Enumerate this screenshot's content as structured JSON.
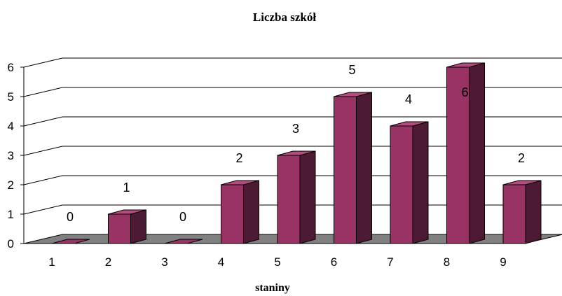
{
  "chart_data": {
    "type": "bar",
    "title": "Liczba szkół",
    "xlabel": "staniny",
    "ylabel": "",
    "categories": [
      "1",
      "2",
      "3",
      "4",
      "5",
      "6",
      "7",
      "8",
      "9"
    ],
    "values": [
      0,
      1,
      0,
      2,
      3,
      5,
      4,
      6,
      2
    ],
    "data_labels": [
      "0",
      "1",
      "0",
      "2",
      "3",
      "5",
      "4",
      "6",
      "2"
    ],
    "ylim": [
      0,
      6
    ],
    "yticks": [
      "0",
      "1",
      "2",
      "3",
      "4",
      "5",
      "6"
    ],
    "grid": true,
    "legend": "none",
    "style": "3d-column",
    "colors": {
      "bar_front": "#993366",
      "bar_side": "#4d1a33",
      "bar_top": "#b34d80",
      "floor": "#808080",
      "gridline": "#000000"
    }
  }
}
